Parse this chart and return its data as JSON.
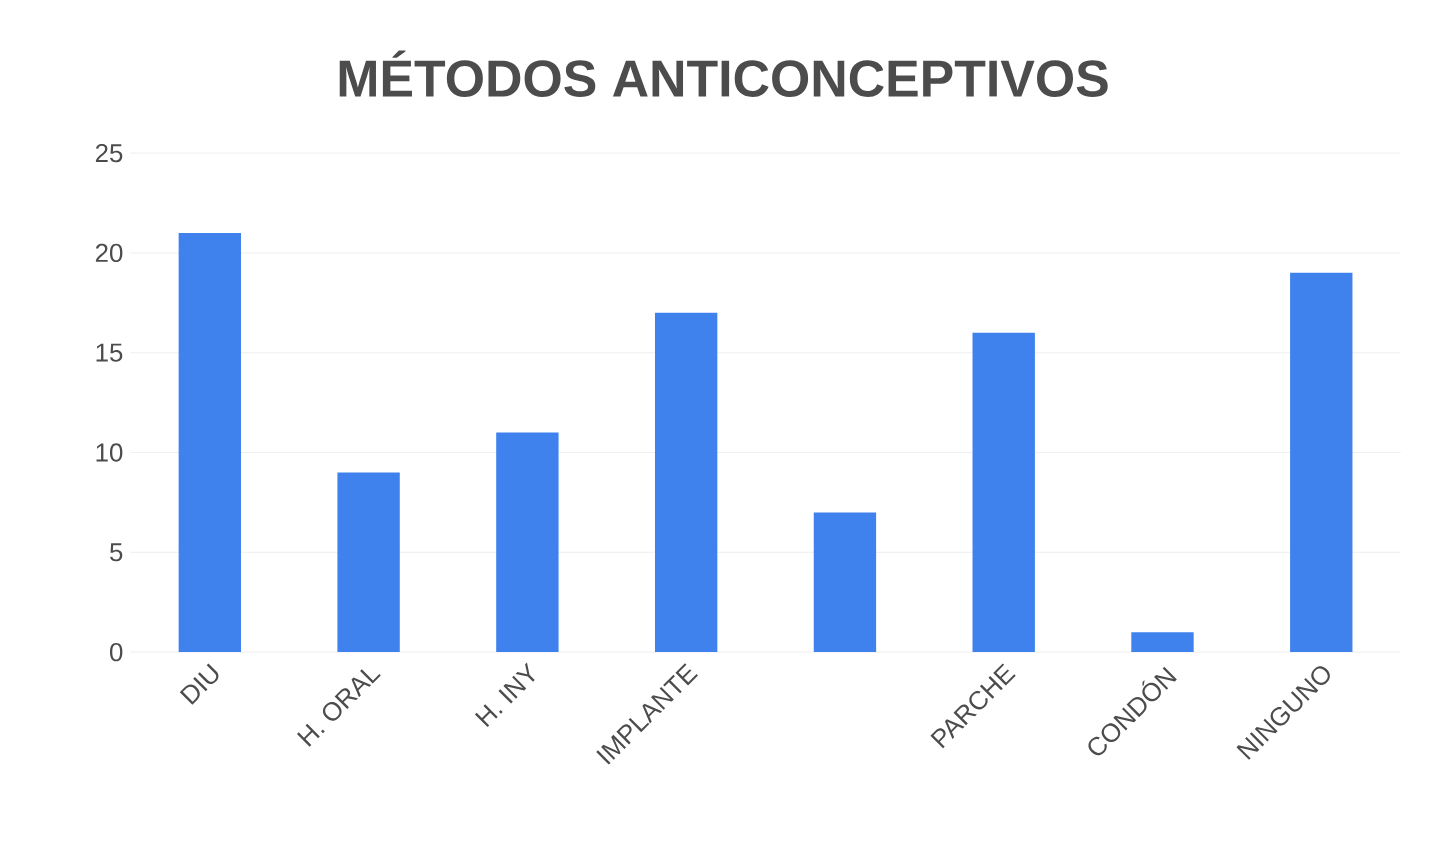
{
  "chart_data": {
    "type": "bar",
    "title": "MÉTODOS ANTICONCEPTIVOS",
    "categories": [
      "DIU",
      "H. ORAL",
      "H. INY",
      "IMPLANTE",
      null,
      "PARCHE",
      "CONDÓN",
      "NINGUNO"
    ],
    "values": [
      21,
      9,
      11,
      17,
      7,
      16,
      1,
      19
    ],
    "color": "#3f82ee",
    "ylim": [
      0,
      25
    ],
    "yticks": [
      0,
      5,
      10,
      15,
      20,
      25
    ],
    "grid": "y"
  }
}
